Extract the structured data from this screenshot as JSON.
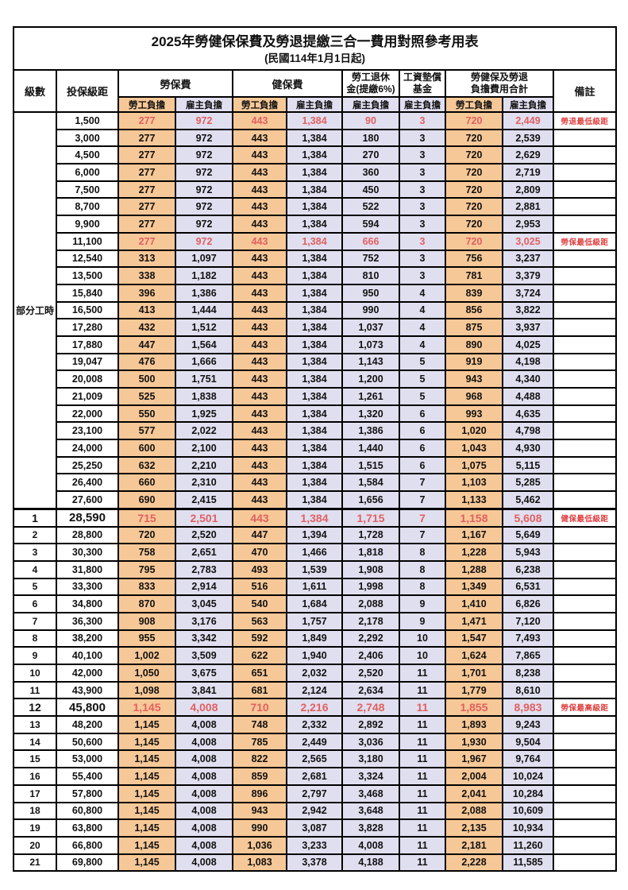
{
  "title": "2025年勞健保保費及勞退提繳三合一費用對照參考用表",
  "subtitle": "(民國114年1月1日起)",
  "colors": {
    "orange": "#F7C897",
    "lavender": "#E0DFF0",
    "red": "#E26060",
    "note_red": "#E04040",
    "border": "#000000"
  },
  "header": {
    "level": "級數",
    "bracket": "投保級距",
    "labor_group": "勞保費",
    "health_group": "健保費",
    "pension_line1": "勞工退休",
    "pension_line2": "金(提繳6%)",
    "wage_fund_line1": "工資墊償",
    "wage_fund_line2": "基金",
    "total_line1": "勞健保及勞退",
    "total_line2": "負擔費用合計",
    "note": "備註",
    "employee": "勞工負擔",
    "employer": "雇主負擔"
  },
  "rows": [
    {
      "level": "部分工時",
      "level_span": 23,
      "bracket": "1,500",
      "fees": [
        "277",
        "972",
        "443",
        "1,384",
        "90",
        "3",
        "720",
        "2,449"
      ],
      "note": "勞退最低級距",
      "red": true
    },
    {
      "bracket": "3,000",
      "fees": [
        "277",
        "972",
        "443",
        "1,384",
        "180",
        "3",
        "720",
        "2,539"
      ]
    },
    {
      "bracket": "4,500",
      "fees": [
        "277",
        "972",
        "443",
        "1,384",
        "270",
        "3",
        "720",
        "2,629"
      ]
    },
    {
      "bracket": "6,000",
      "fees": [
        "277",
        "972",
        "443",
        "1,384",
        "360",
        "3",
        "720",
        "2,719"
      ]
    },
    {
      "bracket": "7,500",
      "fees": [
        "277",
        "972",
        "443",
        "1,384",
        "450",
        "3",
        "720",
        "2,809"
      ]
    },
    {
      "bracket": "8,700",
      "fees": [
        "277",
        "972",
        "443",
        "1,384",
        "522",
        "3",
        "720",
        "2,881"
      ]
    },
    {
      "bracket": "9,900",
      "fees": [
        "277",
        "972",
        "443",
        "1,384",
        "594",
        "3",
        "720",
        "2,953"
      ]
    },
    {
      "bracket": "11,100",
      "fees": [
        "277",
        "972",
        "443",
        "1,384",
        "666",
        "3",
        "720",
        "3,025"
      ],
      "note": "勞保最低級距",
      "red": true
    },
    {
      "bracket": "12,540",
      "fees": [
        "313",
        "1,097",
        "443",
        "1,384",
        "752",
        "3",
        "756",
        "3,237"
      ]
    },
    {
      "bracket": "13,500",
      "fees": [
        "338",
        "1,182",
        "443",
        "1,384",
        "810",
        "3",
        "781",
        "3,379"
      ]
    },
    {
      "bracket": "15,840",
      "fees": [
        "396",
        "1,386",
        "443",
        "1,384",
        "950",
        "4",
        "839",
        "3,724"
      ]
    },
    {
      "bracket": "16,500",
      "fees": [
        "413",
        "1,444",
        "443",
        "1,384",
        "990",
        "4",
        "856",
        "3,822"
      ]
    },
    {
      "bracket": "17,280",
      "fees": [
        "432",
        "1,512",
        "443",
        "1,384",
        "1,037",
        "4",
        "875",
        "3,937"
      ]
    },
    {
      "bracket": "17,880",
      "fees": [
        "447",
        "1,564",
        "443",
        "1,384",
        "1,073",
        "4",
        "890",
        "4,025"
      ]
    },
    {
      "bracket": "19,047",
      "fees": [
        "476",
        "1,666",
        "443",
        "1,384",
        "1,143",
        "5",
        "919",
        "4,198"
      ]
    },
    {
      "bracket": "20,008",
      "fees": [
        "500",
        "1,751",
        "443",
        "1,384",
        "1,200",
        "5",
        "943",
        "4,340"
      ]
    },
    {
      "bracket": "21,009",
      "fees": [
        "525",
        "1,838",
        "443",
        "1,384",
        "1,261",
        "5",
        "968",
        "4,488"
      ]
    },
    {
      "bracket": "22,000",
      "fees": [
        "550",
        "1,925",
        "443",
        "1,384",
        "1,320",
        "6",
        "993",
        "4,635"
      ]
    },
    {
      "bracket": "23,100",
      "fees": [
        "577",
        "2,022",
        "443",
        "1,384",
        "1,386",
        "6",
        "1,020",
        "4,798"
      ]
    },
    {
      "bracket": "24,000",
      "fees": [
        "600",
        "2,100",
        "443",
        "1,384",
        "1,440",
        "6",
        "1,043",
        "4,930"
      ]
    },
    {
      "bracket": "25,250",
      "fees": [
        "632",
        "2,210",
        "443",
        "1,384",
        "1,515",
        "6",
        "1,075",
        "5,115"
      ]
    },
    {
      "bracket": "26,400",
      "fees": [
        "660",
        "2,310",
        "443",
        "1,384",
        "1,584",
        "7",
        "1,103",
        "5,285"
      ]
    },
    {
      "bracket": "27,600",
      "fees": [
        "690",
        "2,415",
        "443",
        "1,384",
        "1,656",
        "7",
        "1,133",
        "5,462"
      ]
    },
    {
      "level": "1",
      "bracket": "28,590",
      "fees": [
        "715",
        "2,501",
        "443",
        "1,384",
        "1,715",
        "7",
        "1,158",
        "5,608"
      ],
      "note": "健保最低級距",
      "red": true,
      "big": true,
      "sep": true
    },
    {
      "level": "2",
      "bracket": "28,800",
      "fees": [
        "720",
        "2,520",
        "447",
        "1,394",
        "1,728",
        "7",
        "1,167",
        "5,649"
      ]
    },
    {
      "level": "3",
      "bracket": "30,300",
      "fees": [
        "758",
        "2,651",
        "470",
        "1,466",
        "1,818",
        "8",
        "1,228",
        "5,943"
      ]
    },
    {
      "level": "4",
      "bracket": "31,800",
      "fees": [
        "795",
        "2,783",
        "493",
        "1,539",
        "1,908",
        "8",
        "1,288",
        "6,238"
      ]
    },
    {
      "level": "5",
      "bracket": "33,300",
      "fees": [
        "833",
        "2,914",
        "516",
        "1,611",
        "1,998",
        "8",
        "1,349",
        "6,531"
      ]
    },
    {
      "level": "6",
      "bracket": "34,800",
      "fees": [
        "870",
        "3,045",
        "540",
        "1,684",
        "2,088",
        "9",
        "1,410",
        "6,826"
      ]
    },
    {
      "level": "7",
      "bracket": "36,300",
      "fees": [
        "908",
        "3,176",
        "563",
        "1,757",
        "2,178",
        "9",
        "1,471",
        "7,120"
      ]
    },
    {
      "level": "8",
      "bracket": "38,200",
      "fees": [
        "955",
        "3,342",
        "592",
        "1,849",
        "2,292",
        "10",
        "1,547",
        "7,493"
      ]
    },
    {
      "level": "9",
      "bracket": "40,100",
      "fees": [
        "1,002",
        "3,509",
        "622",
        "1,940",
        "2,406",
        "10",
        "1,624",
        "7,865"
      ]
    },
    {
      "level": "10",
      "bracket": "42,000",
      "fees": [
        "1,050",
        "3,675",
        "651",
        "2,032",
        "2,520",
        "11",
        "1,701",
        "8,238"
      ]
    },
    {
      "level": "11",
      "bracket": "43,900",
      "fees": [
        "1,098",
        "3,841",
        "681",
        "2,124",
        "2,634",
        "11",
        "1,779",
        "8,610"
      ]
    },
    {
      "level": "12",
      "bracket": "45,800",
      "fees": [
        "1,145",
        "4,008",
        "710",
        "2,216",
        "2,748",
        "11",
        "1,855",
        "8,983"
      ],
      "note": "勞保最高級距",
      "red": true,
      "big": true
    },
    {
      "level": "13",
      "bracket": "48,200",
      "fees": [
        "1,145",
        "4,008",
        "748",
        "2,332",
        "2,892",
        "11",
        "1,893",
        "9,243"
      ]
    },
    {
      "level": "14",
      "bracket": "50,600",
      "fees": [
        "1,145",
        "4,008",
        "785",
        "2,449",
        "3,036",
        "11",
        "1,930",
        "9,504"
      ]
    },
    {
      "level": "15",
      "bracket": "53,000",
      "fees": [
        "1,145",
        "4,008",
        "822",
        "2,565",
        "3,180",
        "11",
        "1,967",
        "9,764"
      ]
    },
    {
      "level": "16",
      "bracket": "55,400",
      "fees": [
        "1,145",
        "4,008",
        "859",
        "2,681",
        "3,324",
        "11",
        "2,004",
        "10,024"
      ]
    },
    {
      "level": "17",
      "bracket": "57,800",
      "fees": [
        "1,145",
        "4,008",
        "896",
        "2,797",
        "3,468",
        "11",
        "2,041",
        "10,284"
      ]
    },
    {
      "level": "18",
      "bracket": "60,800",
      "fees": [
        "1,145",
        "4,008",
        "943",
        "2,942",
        "3,648",
        "11",
        "2,088",
        "10,609"
      ]
    },
    {
      "level": "19",
      "bracket": "63,800",
      "fees": [
        "1,145",
        "4,008",
        "990",
        "3,087",
        "3,828",
        "11",
        "2,135",
        "10,934"
      ]
    },
    {
      "level": "20",
      "bracket": "66,800",
      "fees": [
        "1,145",
        "4,008",
        "1,036",
        "3,233",
        "4,008",
        "11",
        "2,181",
        "11,260"
      ]
    },
    {
      "level": "21",
      "bracket": "69,800",
      "fees": [
        "1,145",
        "4,008",
        "1,083",
        "3,378",
        "4,188",
        "11",
        "2,228",
        "11,585"
      ]
    }
  ]
}
